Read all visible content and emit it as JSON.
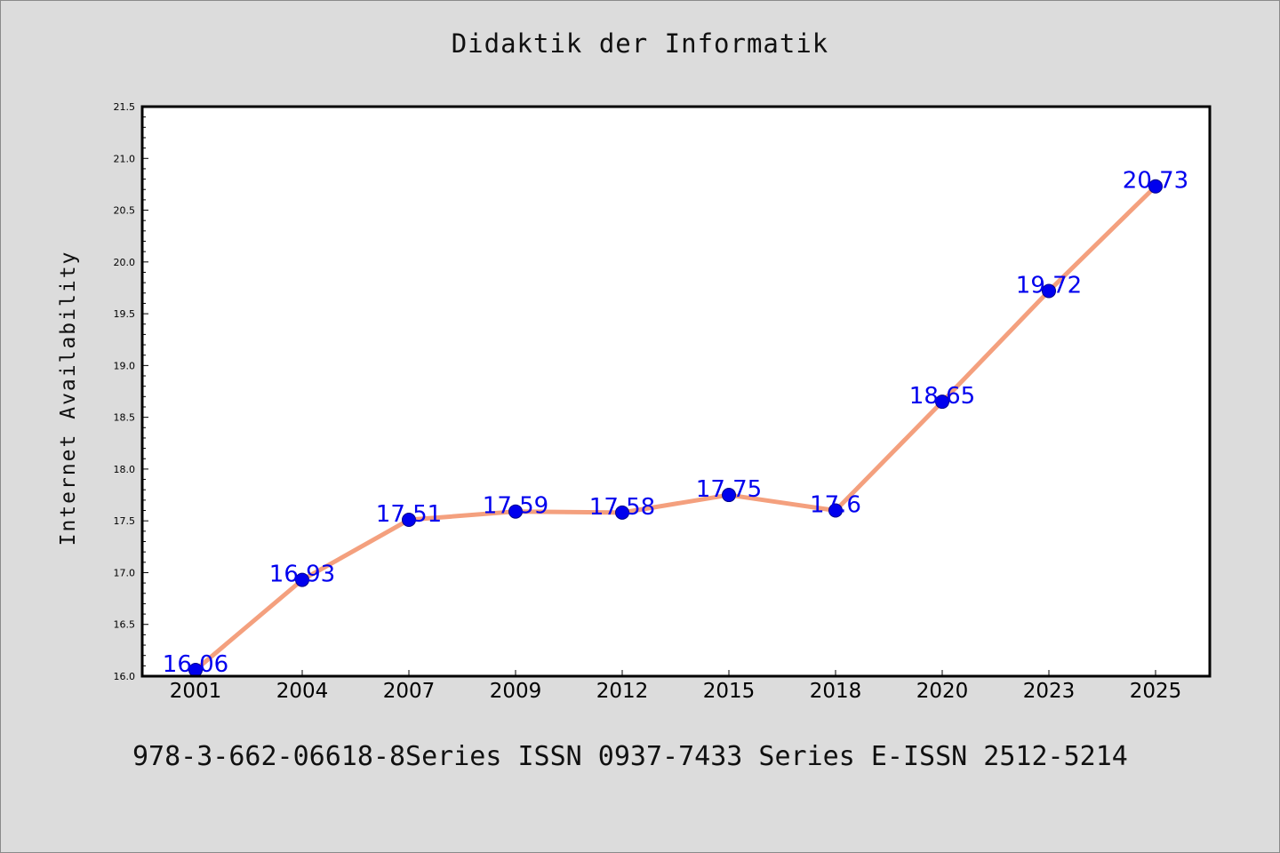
{
  "chart_data": {
    "type": "line",
    "title": "Didaktik der Informatik",
    "xlabel": "",
    "ylabel": "Internet Availability",
    "categories": [
      "2001",
      "2004",
      "2007",
      "2009",
      "2012",
      "2015",
      "2018",
      "2020",
      "2023",
      "2025"
    ],
    "values": [
      16.06,
      16.93,
      17.51,
      17.59,
      17.58,
      17.75,
      17.6,
      18.65,
      19.72,
      20.73
    ],
    "data_labels": [
      "16.06",
      "16.93",
      "17.51",
      "17.59",
      "17.58",
      "17.75",
      "17.6",
      "18.65",
      "19.72",
      "20.73"
    ],
    "ylim": [
      16.0,
      21.5
    ],
    "yticks": [
      "16.0",
      "16.5",
      "17.0",
      "17.5",
      "18.0",
      "18.5",
      "19.0",
      "19.5",
      "20.0",
      "20.5",
      "21.0",
      "21.5"
    ],
    "grid": false,
    "line_color": "#f4a07e",
    "marker_color": "#0000ee",
    "label_color": "#0000ee",
    "plot_background": "#ffffff"
  },
  "footer": "978-3-662-06618-8Series ISSN 0937-7433 Series E-ISSN 2512-5214"
}
